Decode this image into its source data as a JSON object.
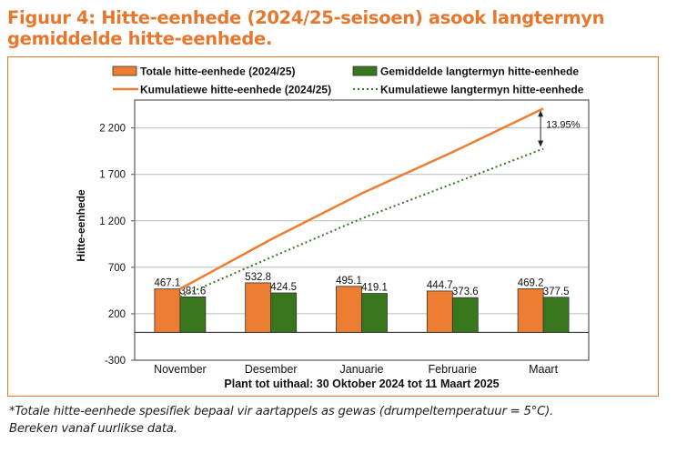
{
  "title": "Figuur 4: Hitte-eenhede (2024/25-seisoen) asook langtermyn gemiddelde hitte-eenhede.",
  "footnote_1": "*Totale hitte-eenhede spesifiek bepaal vir aartappels as gewas (drumpeltemperatuur = 5°C).",
  "footnote_2": "Bereken vanaf uurlikse data.",
  "chart_data": {
    "type": "bar",
    "categories": [
      "November",
      "Desember",
      "Januarie",
      "Februarie",
      "Maart"
    ],
    "series": [
      {
        "name": "Totale hitte-eenhede (2024/25)",
        "kind": "bar",
        "color": "#ED7D31",
        "values": [
          467.1,
          532.8,
          495.1,
          444.7,
          469.2
        ],
        "labels": [
          "467.1",
          "532.8",
          "495.1",
          "444.7",
          "469.2"
        ]
      },
      {
        "name": "Gemiddelde langtermyn hitte-eenhede",
        "kind": "bar",
        "color": "#38761D",
        "values": [
          381.6,
          424.5,
          419.1,
          373.6,
          377.5
        ],
        "labels": [
          "381.6",
          "424.5",
          "419.1",
          "373.6",
          "377.5"
        ]
      },
      {
        "name": "Kumulatiewe hitte-eenhede (2024/25)",
        "kind": "line",
        "color": "#ED7D31",
        "values": [
          467.1,
          999.9,
          1495.0,
          1939.7,
          2408.9
        ]
      },
      {
        "name": "Kumulatiewe langtermyn hitte-eenhede",
        "kind": "dotted",
        "color": "#38761D",
        "values": [
          381.6,
          806.1,
          1225.2,
          1598.8,
          1976.3
        ]
      }
    ],
    "ylabel": "Hitte-eenhede",
    "xlabel": "Plant tot uithaal: 30 Oktober 2024 tot 11 Maart 2025",
    "yticks": [
      -300,
      200,
      700,
      1200,
      1700,
      2200
    ],
    "ytick_labels": [
      "-300",
      "200",
      "700",
      "1 200",
      "1 700",
      "2 200"
    ],
    "ylim": [
      -300,
      2500
    ],
    "grid": true,
    "legend": "top",
    "annotation": "13.95%"
  }
}
